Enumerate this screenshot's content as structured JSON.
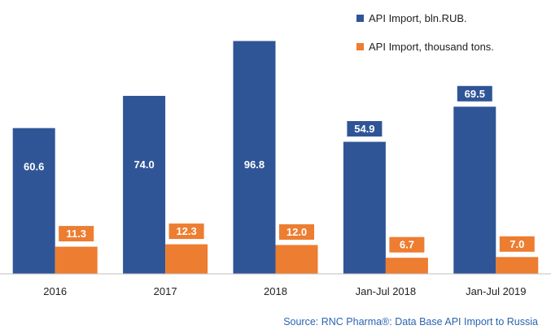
{
  "colors": {
    "rub": "#2f5597",
    "tons": "#ed7d31",
    "axis": "#bfbfbf"
  },
  "legend": {
    "rub_label": "API Import, bln.RUB.",
    "tons_label": "API Import, thousand tons."
  },
  "source": "Source: RNC Pharma®: Data Base API Import to Russia",
  "chart_data": {
    "type": "bar",
    "categories": [
      "2016",
      "2017",
      "2018",
      "Jan-Jul 2018",
      "Jan-Jul 2019"
    ],
    "series": [
      {
        "name": "API Import, bln.RUB.",
        "values": [
          60.6,
          74.0,
          96.8,
          54.9,
          69.5
        ],
        "labels": [
          "60.6",
          "74.0",
          "96.8",
          "54.9",
          "69.5"
        ]
      },
      {
        "name": "API Import, thousand tons.",
        "values": [
          11.3,
          12.3,
          12.0,
          6.7,
          7.0
        ],
        "labels": [
          "11.3",
          "12.3",
          "12.0",
          "6.7",
          "7.0"
        ]
      }
    ],
    "ylim": [
      0,
      100
    ],
    "grid": false,
    "legend_position": "top-right"
  }
}
